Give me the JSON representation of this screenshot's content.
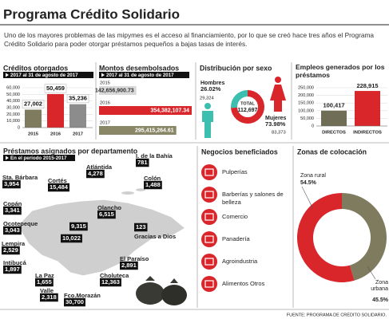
{
  "header": {
    "title": "Programa Crédito Solidario",
    "intro": "Uno de los mayores problemas de las mipymes es el acceso al financiamiento, por lo que se creó hace tres años el Programa Crédito Solidario para poder otorgar préstamos pequeños a bajas tasas de interés."
  },
  "chart_data": [
    {
      "type": "bar",
      "title": "Créditos otorgados",
      "subtitle": "2017 al 31 de agosto de 2017",
      "categories": [
        "2015",
        "2016",
        "2017"
      ],
      "values": [
        27002,
        50459,
        35236
      ],
      "value_labels": [
        "27,002",
        "50,459",
        "35,236"
      ],
      "colors": [
        "#7e7b5f",
        "#d8262b",
        "#8c8c8c"
      ],
      "ylim": [
        0,
        60000
      ],
      "yticks": [
        0,
        {
          "value": 10000,
          "label": "10,000"
        },
        {
          "value": 20000,
          "label": "20,000"
        },
        {
          "value": 30000,
          "label": "30,000"
        },
        {
          "value": 40000,
          "label": "40,000"
        },
        {
          "value": 50000,
          "label": "50,000"
        },
        {
          "value": 60000,
          "label": "60,000"
        }
      ],
      "grid": true
    },
    {
      "type": "hbar",
      "title": "Montos desembolsados",
      "subtitle": "2017 al 31 de agosto de 2017",
      "categories": [
        "2015",
        "2016",
        "2017"
      ],
      "values": [
        142656900.73,
        354382107.34,
        295415264.61
      ],
      "value_labels": [
        "142,656,900.73",
        "354,382,107.34",
        "295,415,264.61"
      ],
      "colors": [
        "#d9d9d9",
        "#d8262b",
        "#8a8766"
      ],
      "label_colors": [
        "#333333",
        "#ffffff",
        "#ffffff"
      ]
    },
    {
      "type": "pie",
      "title": "Distribución por sexo",
      "categories": [
        "Hombres",
        "Mujeres"
      ],
      "values": [
        26.02,
        73.98
      ],
      "value_labels": [
        "26.02%",
        "73.98%"
      ],
      "colors": [
        "#3cbfae",
        "#d8262b"
      ],
      "count_labels": [
        "29,324",
        "83,373"
      ],
      "center_label": "TOTAL",
      "center_value": "112,697"
    },
    {
      "type": "bar",
      "title": "Empleos generados por los préstamos",
      "categories": [
        "DIRECTOS",
        "INDIRECTOS"
      ],
      "values": [
        100417,
        228915
      ],
      "value_labels": [
        "100,417",
        "228,915"
      ],
      "colors": [
        "#6f6d55",
        "#d8262b"
      ],
      "ylim": [
        0,
        250000
      ],
      "yticks": [
        0,
        {
          "value": 50000,
          "label": "50,000"
        },
        {
          "value": 100000,
          "label": "100,000"
        },
        {
          "value": 150000,
          "label": "150,000"
        },
        {
          "value": 200000,
          "label": "200,000"
        },
        {
          "value": 250000,
          "label": "250,000"
        }
      ],
      "grid": true
    },
    {
      "type": "pie",
      "title": "Zonas de colocación",
      "categories": [
        "Zona rural",
        "Zona urbana"
      ],
      "values": [
        54.5,
        45.5
      ],
      "value_labels": [
        "54.5%",
        "45.5%"
      ],
      "colors": [
        "#d8262b",
        "#7e7b5f"
      ]
    }
  ],
  "map": {
    "title": "Préstamos asignados por departamento",
    "subtitle": "En el período 2015-2017",
    "departments": [
      {
        "name": "Sta. Bárbara",
        "value": "3,954"
      },
      {
        "name": "Cortés",
        "value": "15,484"
      },
      {
        "name": "Atlántida",
        "value": "4,278"
      },
      {
        "name": "I. de la Bahía",
        "value": "781"
      },
      {
        "name": "Colón",
        "value": "1,488"
      },
      {
        "name": "Copán",
        "value": "3,341"
      },
      {
        "name": "Ocotepeque",
        "value": "3,043"
      },
      {
        "name": "Lempira",
        "value": "2,529"
      },
      {
        "name": "Intibucá",
        "value": "1,897"
      },
      {
        "name": "La Paz",
        "value": "1,655"
      },
      {
        "name": "Valle",
        "value": "2,318"
      },
      {
        "name": "Fco.Morazán",
        "value": "30,700"
      },
      {
        "name": "Choluteca",
        "value": "12,363"
      },
      {
        "name": "El Paraíso",
        "value": "2,891"
      },
      {
        "name": "Olancho",
        "value": "6,515"
      },
      {
        "name": "Gracias a Dios",
        "value": "123"
      },
      {
        "name": null,
        "value": "9,315"
      },
      {
        "name": null,
        "value": "10,022"
      }
    ]
  },
  "businesses": {
    "title": "Negocios beneficiados",
    "items": [
      "Pulperías",
      "Barberías y salones de belleza",
      "Comercio",
      "Panadería",
      "Agroindustria",
      "Alimentos Otros"
    ]
  },
  "source": "FUENTE: PROGRAMA DE CRÉDITO SOLIDARIO."
}
